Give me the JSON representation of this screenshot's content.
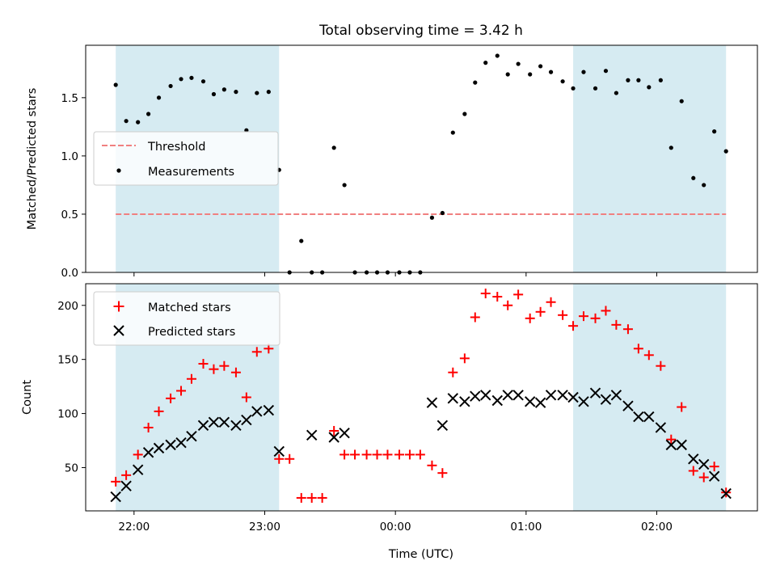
{
  "chart_data": {
    "title": "Total observing time = 3.42 h",
    "xlabel": "Time (UTC)",
    "x_ticks": [
      "22:00",
      "23:00",
      "00:00",
      "01:00",
      "02:00"
    ],
    "x_tick_hours": [
      22.0,
      23.0,
      24.0,
      25.0,
      26.0
    ],
    "xlim_hours": [
      21.63,
      26.77
    ],
    "shaded_spans_hours": [
      [
        21.86,
        23.11
      ],
      [
        25.36,
        26.53
      ]
    ],
    "shade_color": "#add8e6",
    "panels": [
      {
        "type": "scatter",
        "ylabel": "Matched/Predicted stars",
        "ylim": [
          0,
          1.95
        ],
        "y_ticks": [
          0.0,
          0.5,
          1.0,
          1.5
        ],
        "y_tick_labels": [
          "0.0",
          "0.5",
          "1.0",
          "1.5"
        ],
        "threshold": {
          "name": "Threshold",
          "value": 0.5,
          "color": "#f08080"
        },
        "legend": [
          "Threshold",
          "Measurements"
        ],
        "series": [
          {
            "name": "Measurements",
            "marker": "dot",
            "color": "#000000",
            "x": [
              21.86,
              21.94,
              22.03,
              22.11,
              22.19,
              22.28,
              22.36,
              22.44,
              22.53,
              22.61,
              22.69,
              22.78,
              22.86,
              22.94,
              23.03,
              23.11,
              23.19,
              23.28,
              23.36,
              23.44,
              23.53,
              23.61,
              23.69,
              23.78,
              23.86,
              23.94,
              24.03,
              24.11,
              24.19,
              24.28,
              24.36,
              24.44,
              24.53,
              24.61,
              24.69,
              24.78,
              24.86,
              24.94,
              25.03,
              25.11,
              25.19,
              25.28,
              25.36,
              25.44,
              25.53,
              25.61,
              25.69,
              25.78,
              25.86,
              25.94,
              26.03,
              26.11,
              26.19,
              26.28,
              26.36,
              26.44,
              26.53
            ],
            "y": [
              1.61,
              1.3,
              1.29,
              1.36,
              1.5,
              1.6,
              1.66,
              1.67,
              1.64,
              1.53,
              1.57,
              1.55,
              1.22,
              1.54,
              1.55,
              0.88,
              0.0,
              0.27,
              0.0,
              0.0,
              1.07,
              0.75,
              0.0,
              0.0,
              0.0,
              0.0,
              0.0,
              0.0,
              0.0,
              0.47,
              0.51,
              1.2,
              1.36,
              1.63,
              1.8,
              1.86,
              1.7,
              1.79,
              1.7,
              1.77,
              1.72,
              1.64,
              1.58,
              1.72,
              1.58,
              1.73,
              1.54,
              1.65,
              1.65,
              1.59,
              1.65,
              1.07,
              1.47,
              0.81,
              0.75,
              1.21,
              1.04
            ]
          }
        ]
      },
      {
        "type": "scatter",
        "ylabel": "Count",
        "ylim": [
          10,
          220
        ],
        "y_ticks": [
          50,
          100,
          150,
          200
        ],
        "y_tick_labels": [
          "50",
          "100",
          "150",
          "200"
        ],
        "legend": [
          "Matched stars",
          "Predicted stars"
        ],
        "series": [
          {
            "name": "Matched stars",
            "marker": "plus",
            "color": "#ff0000",
            "x": [
              21.86,
              21.94,
              22.03,
              22.11,
              22.19,
              22.28,
              22.36,
              22.44,
              22.53,
              22.61,
              22.69,
              22.78,
              22.86,
              22.94,
              23.03,
              23.11,
              23.19,
              23.28,
              23.36,
              23.44,
              23.53,
              23.61,
              23.69,
              23.78,
              23.86,
              23.94,
              24.03,
              24.11,
              24.19,
              24.28,
              24.36,
              24.44,
              24.53,
              24.61,
              24.69,
              24.78,
              24.86,
              24.94,
              25.03,
              25.11,
              25.19,
              25.28,
              25.36,
              25.44,
              25.53,
              25.61,
              25.69,
              25.78,
              25.86,
              25.94,
              26.03,
              26.11,
              26.19,
              26.28,
              26.36,
              26.44,
              26.53
            ],
            "y": [
              37,
              43,
              62,
              87,
              102,
              114,
              121,
              132,
              146,
              141,
              144,
              138,
              115,
              157,
              160,
              58,
              58,
              22,
              22,
              22,
              84,
              62,
              62,
              62,
              62,
              62,
              62,
              62,
              62,
              52,
              45,
              138,
              151,
              189,
              211,
              208,
              200,
              210,
              188,
              194,
              203,
              191,
              181,
              190,
              188,
              195,
              182,
              178,
              160,
              154,
              144,
              76,
              106,
              47,
              41,
              51,
              27
            ]
          },
          {
            "name": "Predicted stars",
            "marker": "x",
            "color": "#000000",
            "x": [
              21.86,
              21.94,
              22.03,
              22.11,
              22.19,
              22.28,
              22.36,
              22.44,
              22.53,
              22.61,
              22.69,
              22.78,
              22.86,
              22.94,
              23.03,
              23.11,
              23.36,
              23.53,
              23.61,
              24.28,
              24.36,
              24.44,
              24.53,
              24.61,
              24.69,
              24.78,
              24.86,
              24.94,
              25.03,
              25.11,
              25.19,
              25.28,
              25.36,
              25.44,
              25.53,
              25.61,
              25.69,
              25.78,
              25.86,
              25.94,
              26.03,
              26.11,
              26.19,
              26.28,
              26.36,
              26.44,
              26.53
            ],
            "y": [
              23,
              33,
              48,
              64,
              68,
              71,
              73,
              79,
              89,
              92,
              92,
              89,
              94,
              102,
              103,
              65,
              80,
              78,
              82,
              110,
              89,
              114,
              111,
              116,
              117,
              112,
              117,
              117,
              111,
              110,
              117,
              117,
              115,
              111,
              119,
              113,
              117,
              107,
              97,
              97,
              87,
              71,
              71,
              58,
              53,
              42,
              26
            ]
          }
        ]
      }
    ]
  }
}
